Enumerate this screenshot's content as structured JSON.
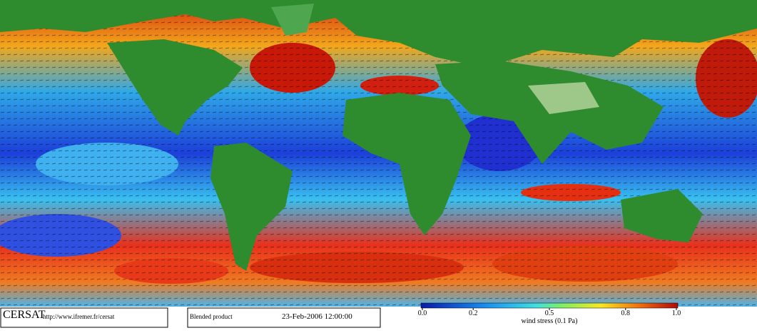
{
  "logo": "CERSAT",
  "url": "http://www.ifremer.fr/cersat",
  "product": "Blended product",
  "date": "23-Feb-2006 12:00:00",
  "colorbar": {
    "label": "wind stress (0.1 Pa)",
    "lim": [
      0,
      1
    ],
    "ticks": [
      {
        "value": 0,
        "label": "0.0"
      },
      0.2,
      0.5,
      0.8,
      {
        "value": 1,
        "label": "1.0"
      }
    ]
  }
}
